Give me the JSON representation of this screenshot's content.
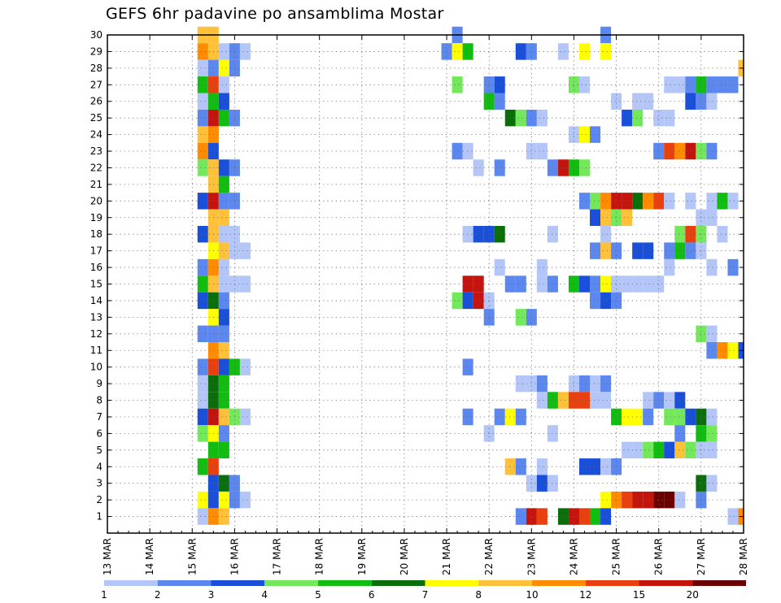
{
  "chart_data": {
    "type": "heatmap",
    "title": "GEFS 6hr padavine po ansamblima Mostar",
    "xlabel": "",
    "ylabel": "",
    "x_ticks": [
      "13 MAR",
      "14 MAR",
      "15 MAR",
      "16 MAR",
      "17 MAR",
      "18 MAR",
      "19 MAR",
      "20 MAR",
      "21 MAR",
      "22 MAR",
      "23 MAR",
      "24 MAR",
      "25 MAR",
      "26 MAR",
      "27 MAR",
      "28 MAR"
    ],
    "xlim_days": [
      13,
      28
    ],
    "y_ticks": [
      1,
      2,
      3,
      4,
      5,
      6,
      7,
      8,
      9,
      10,
      11,
      12,
      13,
      14,
      15,
      16,
      17,
      18,
      19,
      20,
      21,
      22,
      23,
      24,
      25,
      26,
      27,
      28,
      29,
      30
    ],
    "ylim": [
      0,
      30
    ],
    "grid": true,
    "step_hours": 6,
    "color_levels": [
      1,
      2,
      3,
      4,
      5,
      6,
      7,
      8,
      10,
      12,
      15,
      20
    ],
    "color_scale": [
      "#b3c6f7",
      "#5b87ee",
      "#1a4fd9",
      "#72e85a",
      "#10bd10",
      "#0a6e0a",
      "#ffff00",
      "#ffc03a",
      "#ff8c00",
      "#e8400e",
      "#c4140e",
      "#6b0000"
    ],
    "cells": [
      [
        30,
        15.25,
        8
      ],
      [
        30,
        15.5,
        8
      ],
      [
        30,
        21.25,
        2
      ],
      [
        30,
        24.75,
        2
      ],
      [
        29,
        15.25,
        10
      ],
      [
        29,
        15.5,
        8
      ],
      [
        29,
        15.75,
        1
      ],
      [
        29,
        16,
        2
      ],
      [
        29,
        16.25,
        1
      ],
      [
        29,
        21,
        2
      ],
      [
        29,
        21.25,
        7
      ],
      [
        29,
        21.5,
        5
      ],
      [
        29,
        22.75,
        3
      ],
      [
        29,
        23,
        2
      ],
      [
        29,
        23.75,
        1
      ],
      [
        29,
        24.25,
        7
      ],
      [
        29,
        24.75,
        7
      ],
      [
        28,
        15.25,
        1
      ],
      [
        28,
        15.5,
        2
      ],
      [
        28,
        15.75,
        7
      ],
      [
        28,
        16,
        2
      ],
      [
        28,
        28,
        8
      ],
      [
        27,
        15.25,
        5
      ],
      [
        27,
        15.5,
        12
      ],
      [
        27,
        15.75,
        1
      ],
      [
        27,
        21.25,
        4
      ],
      [
        27,
        22,
        2
      ],
      [
        27,
        22.25,
        3
      ],
      [
        27,
        24,
        4
      ],
      [
        27,
        24.25,
        1
      ],
      [
        27,
        26.25,
        1
      ],
      [
        27,
        26.5,
        1
      ],
      [
        27,
        26.75,
        2
      ],
      [
        27,
        27,
        5
      ],
      [
        27,
        27.25,
        2
      ],
      [
        27,
        27.5,
        2
      ],
      [
        27,
        27.75,
        2
      ],
      [
        26,
        15.25,
        1
      ],
      [
        26,
        15.5,
        5
      ],
      [
        26,
        15.75,
        3
      ],
      [
        26,
        22,
        5
      ],
      [
        26,
        22.25,
        2
      ],
      [
        26,
        25,
        1
      ],
      [
        26,
        25.5,
        1
      ],
      [
        26,
        25.75,
        1
      ],
      [
        26,
        26.75,
        3
      ],
      [
        26,
        27,
        2
      ],
      [
        26,
        27.25,
        1
      ],
      [
        25,
        15.25,
        2
      ],
      [
        25,
        15.5,
        15
      ],
      [
        25,
        15.75,
        5
      ],
      [
        25,
        16,
        2
      ],
      [
        25,
        22.5,
        6
      ],
      [
        25,
        22.75,
        4
      ],
      [
        25,
        23,
        2
      ],
      [
        25,
        23.25,
        1
      ],
      [
        25,
        25.25,
        3
      ],
      [
        25,
        25.5,
        4
      ],
      [
        25,
        26,
        1
      ],
      [
        25,
        26.25,
        1
      ],
      [
        24,
        15.25,
        8
      ],
      [
        24,
        15.5,
        10
      ],
      [
        24,
        24,
        1
      ],
      [
        24,
        24.25,
        7
      ],
      [
        24,
        24.5,
        2
      ],
      [
        23,
        15.25,
        10
      ],
      [
        23,
        15.5,
        3
      ],
      [
        23,
        21.25,
        2
      ],
      [
        23,
        21.5,
        1
      ],
      [
        23,
        23,
        1
      ],
      [
        23,
        23.25,
        1
      ],
      [
        23,
        26,
        2
      ],
      [
        23,
        26.25,
        12
      ],
      [
        23,
        26.5,
        10
      ],
      [
        23,
        26.75,
        15
      ],
      [
        23,
        27,
        4
      ],
      [
        23,
        27.25,
        2
      ],
      [
        22,
        15.25,
        4
      ],
      [
        22,
        15.5,
        8
      ],
      [
        22,
        15.75,
        3
      ],
      [
        22,
        16,
        2
      ],
      [
        22,
        21.75,
        1
      ],
      [
        22,
        22.25,
        2
      ],
      [
        22,
        23.5,
        2
      ],
      [
        22,
        23.75,
        15
      ],
      [
        22,
        24,
        5
      ],
      [
        22,
        24.25,
        4
      ],
      [
        21,
        15.5,
        8
      ],
      [
        21,
        15.75,
        5
      ],
      [
        20,
        15.25,
        3
      ],
      [
        20,
        15.5,
        15
      ],
      [
        20,
        15.75,
        2
      ],
      [
        20,
        16,
        2
      ],
      [
        20,
        24.25,
        2
      ],
      [
        20,
        24.5,
        4
      ],
      [
        20,
        24.75,
        10
      ],
      [
        20,
        25,
        15
      ],
      [
        20,
        25.25,
        15
      ],
      [
        20,
        25.5,
        6
      ],
      [
        20,
        25.75,
        10
      ],
      [
        20,
        26,
        12
      ],
      [
        20,
        26.25,
        1
      ],
      [
        20,
        26.75,
        1
      ],
      [
        20,
        27.25,
        1
      ],
      [
        20,
        27.5,
        5
      ],
      [
        20,
        27.75,
        1
      ],
      [
        19,
        15.5,
        8
      ],
      [
        19,
        15.75,
        8
      ],
      [
        19,
        24.5,
        3
      ],
      [
        19,
        24.75,
        8
      ],
      [
        19,
        25,
        4
      ],
      [
        19,
        25.25,
        8
      ],
      [
        19,
        27,
        1
      ],
      [
        19,
        27.25,
        1
      ],
      [
        18,
        15.25,
        3
      ],
      [
        18,
        15.5,
        8
      ],
      [
        18,
        15.75,
        1
      ],
      [
        18,
        16,
        1
      ],
      [
        18,
        21.5,
        1
      ],
      [
        18,
        21.75,
        3
      ],
      [
        18,
        22,
        3
      ],
      [
        18,
        22.25,
        6
      ],
      [
        18,
        23.5,
        1
      ],
      [
        18,
        24.75,
        1
      ],
      [
        18,
        26.5,
        4
      ],
      [
        18,
        26.75,
        12
      ],
      [
        18,
        27,
        4
      ],
      [
        18,
        27.5,
        1
      ],
      [
        17,
        15.5,
        7
      ],
      [
        17,
        15.75,
        8
      ],
      [
        17,
        16,
        1
      ],
      [
        17,
        16.25,
        1
      ],
      [
        17,
        24.5,
        2
      ],
      [
        17,
        24.75,
        8
      ],
      [
        17,
        25,
        2
      ],
      [
        17,
        25.5,
        3
      ],
      [
        17,
        25.75,
        3
      ],
      [
        17,
        26.25,
        2
      ],
      [
        17,
        26.5,
        5
      ],
      [
        17,
        26.75,
        2
      ],
      [
        17,
        27,
        1
      ],
      [
        16,
        15.25,
        2
      ],
      [
        16,
        15.5,
        10
      ],
      [
        16,
        15.75,
        1
      ],
      [
        16,
        22.25,
        1
      ],
      [
        16,
        23.25,
        1
      ],
      [
        16,
        26.25,
        1
      ],
      [
        16,
        27.25,
        1
      ],
      [
        16,
        27.75,
        2
      ],
      [
        15,
        15.25,
        5
      ],
      [
        15,
        15.5,
        8
      ],
      [
        15,
        15.75,
        1
      ],
      [
        15,
        16,
        1
      ],
      [
        15,
        16.25,
        1
      ],
      [
        15,
        21.5,
        15
      ],
      [
        15,
        21.75,
        15
      ],
      [
        15,
        22.5,
        2
      ],
      [
        15,
        22.75,
        2
      ],
      [
        15,
        23.25,
        1
      ],
      [
        15,
        23.5,
        2
      ],
      [
        15,
        24,
        5
      ],
      [
        15,
        24.25,
        3
      ],
      [
        15,
        24.5,
        2
      ],
      [
        15,
        24.75,
        7
      ],
      [
        15,
        25,
        1
      ],
      [
        15,
        25.25,
        1
      ],
      [
        15,
        25.5,
        1
      ],
      [
        15,
        25.75,
        1
      ],
      [
        15,
        26,
        1
      ],
      [
        14,
        15.25,
        3
      ],
      [
        14,
        15.5,
        6
      ],
      [
        14,
        15.75,
        2
      ],
      [
        14,
        21.25,
        4
      ],
      [
        14,
        21.5,
        3
      ],
      [
        14,
        21.75,
        15
      ],
      [
        14,
        22,
        1
      ],
      [
        14,
        24.5,
        2
      ],
      [
        14,
        24.75,
        3
      ],
      [
        14,
        25,
        2
      ],
      [
        13,
        15.5,
        7
      ],
      [
        13,
        15.75,
        3
      ],
      [
        13,
        22,
        2
      ],
      [
        13,
        22.75,
        4
      ],
      [
        13,
        23,
        2
      ],
      [
        12,
        15.25,
        2
      ],
      [
        12,
        15.5,
        2
      ],
      [
        12,
        15.75,
        2
      ],
      [
        12,
        27,
        4
      ],
      [
        12,
        27.25,
        1
      ],
      [
        11,
        15.5,
        10
      ],
      [
        11,
        15.75,
        8
      ],
      [
        11,
        27.25,
        2
      ],
      [
        11,
        27.5,
        10
      ],
      [
        11,
        27.75,
        7
      ],
      [
        11,
        28,
        3
      ],
      [
        10,
        15.25,
        2
      ],
      [
        10,
        15.5,
        12
      ],
      [
        10,
        15.75,
        3
      ],
      [
        10,
        16,
        5
      ],
      [
        10,
        16.25,
        1
      ],
      [
        10,
        21.5,
        2
      ],
      [
        9,
        15.25,
        1
      ],
      [
        9,
        15.5,
        6
      ],
      [
        9,
        15.75,
        5
      ],
      [
        9,
        22.75,
        1
      ],
      [
        9,
        23,
        1
      ],
      [
        9,
        23.25,
        2
      ],
      [
        9,
        24,
        1
      ],
      [
        9,
        24.25,
        2
      ],
      [
        9,
        24.5,
        1
      ],
      [
        9,
        24.75,
        2
      ],
      [
        8,
        15.25,
        1
      ],
      [
        8,
        15.5,
        6
      ],
      [
        8,
        15.75,
        5
      ],
      [
        8,
        23.25,
        1
      ],
      [
        8,
        23.5,
        5
      ],
      [
        8,
        23.75,
        8
      ],
      [
        8,
        24,
        12
      ],
      [
        8,
        24.25,
        12
      ],
      [
        8,
        24.5,
        1
      ],
      [
        8,
        24.75,
        1
      ],
      [
        8,
        25.75,
        1
      ],
      [
        8,
        26,
        2
      ],
      [
        8,
        26.25,
        1
      ],
      [
        8,
        26.5,
        3
      ],
      [
        7,
        15.25,
        3
      ],
      [
        7,
        15.5,
        15
      ],
      [
        7,
        15.75,
        8
      ],
      [
        7,
        16,
        4
      ],
      [
        7,
        16.25,
        1
      ],
      [
        7,
        21.5,
        2
      ],
      [
        7,
        22.25,
        2
      ],
      [
        7,
        22.5,
        7
      ],
      [
        7,
        22.75,
        2
      ],
      [
        7,
        25,
        5
      ],
      [
        7,
        25.25,
        7
      ],
      [
        7,
        25.5,
        7
      ],
      [
        7,
        25.75,
        2
      ],
      [
        7,
        26.25,
        4
      ],
      [
        7,
        26.5,
        4
      ],
      [
        7,
        26.75,
        3
      ],
      [
        7,
        27,
        6
      ],
      [
        7,
        27.25,
        1
      ],
      [
        6,
        15.25,
        4
      ],
      [
        6,
        15.5,
        7
      ],
      [
        6,
        15.75,
        2
      ],
      [
        6,
        22,
        1
      ],
      [
        6,
        23.5,
        1
      ],
      [
        6,
        26.5,
        2
      ],
      [
        6,
        27,
        5
      ],
      [
        6,
        27.25,
        4
      ],
      [
        5,
        15.5,
        5
      ],
      [
        5,
        15.75,
        5
      ],
      [
        5,
        25.25,
        1
      ],
      [
        5,
        25.5,
        1
      ],
      [
        5,
        25.75,
        4
      ],
      [
        5,
        26,
        5
      ],
      [
        5,
        26.25,
        3
      ],
      [
        5,
        26.5,
        8
      ],
      [
        5,
        26.75,
        4
      ],
      [
        5,
        27,
        1
      ],
      [
        5,
        27.25,
        1
      ],
      [
        4,
        15.25,
        5
      ],
      [
        4,
        15.5,
        12
      ],
      [
        4,
        22.5,
        8
      ],
      [
        4,
        22.75,
        2
      ],
      [
        4,
        23.25,
        1
      ],
      [
        4,
        24.25,
        3
      ],
      [
        4,
        24.5,
        3
      ],
      [
        4,
        24.75,
        1
      ],
      [
        4,
        25,
        2
      ],
      [
        3,
        15.5,
        3
      ],
      [
        3,
        15.75,
        6
      ],
      [
        3,
        16,
        2
      ],
      [
        3,
        23,
        1
      ],
      [
        3,
        23.25,
        3
      ],
      [
        3,
        23.5,
        1
      ],
      [
        3,
        27,
        6
      ],
      [
        3,
        27.25,
        1
      ],
      [
        2,
        15.25,
        7
      ],
      [
        2,
        15.5,
        3
      ],
      [
        2,
        15.75,
        7
      ],
      [
        2,
        16,
        2
      ],
      [
        2,
        16.25,
        1
      ],
      [
        2,
        24.75,
        7
      ],
      [
        2,
        25,
        10
      ],
      [
        2,
        25.25,
        12
      ],
      [
        2,
        25.5,
        15
      ],
      [
        2,
        25.75,
        15
      ],
      [
        2,
        26,
        20
      ],
      [
        2,
        26.25,
        20
      ],
      [
        2,
        26.5,
        1
      ],
      [
        2,
        27,
        2
      ],
      [
        1,
        15.25,
        1
      ],
      [
        1,
        15.5,
        10
      ],
      [
        1,
        15.75,
        8
      ],
      [
        1,
        22.75,
        2
      ],
      [
        1,
        23,
        15
      ],
      [
        1,
        23.25,
        12
      ],
      [
        1,
        23.75,
        6
      ],
      [
        1,
        24,
        15
      ],
      [
        1,
        24.25,
        12
      ],
      [
        1,
        24.5,
        5
      ],
      [
        1,
        24.75,
        3
      ],
      [
        1,
        27.75,
        1
      ],
      [
        1,
        28,
        10
      ]
    ]
  }
}
